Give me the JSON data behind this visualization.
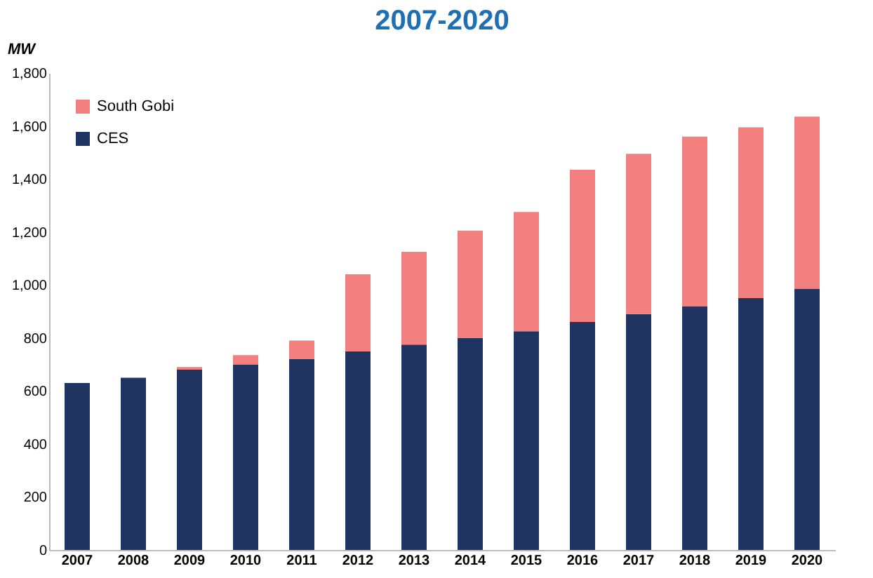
{
  "chart_data": {
    "type": "bar",
    "title": "2007-2020",
    "ylabel": "MW",
    "stacked": true,
    "legend": "top left",
    "grid": false,
    "categories": [
      "2007",
      "2008",
      "2009",
      "2010",
      "2011",
      "2012",
      "2013",
      "2014",
      "2015",
      "2016",
      "2017",
      "2018",
      "2019",
      "2020"
    ],
    "series": [
      {
        "name": "CES",
        "color": "#1f3461",
        "values": [
          630,
          650,
          680,
          700,
          720,
          750,
          775,
          800,
          825,
          860,
          890,
          920,
          950,
          985
        ]
      },
      {
        "name": "South Gobi",
        "color": "#f47f7f",
        "values": [
          0,
          0,
          10,
          35,
          70,
          290,
          350,
          405,
          450,
          575,
          605,
          640,
          645,
          650
        ]
      }
    ],
    "ylim": [
      0,
      1800
    ],
    "yticks": [
      0,
      200,
      400,
      600,
      800,
      {
        "value": 1000,
        "label": "1,000"
      },
      {
        "value": 1200,
        "label": "1,200"
      },
      {
        "value": 1400,
        "label": "1,400"
      },
      {
        "value": 1600,
        "label": "1,600"
      },
      {
        "value": 1800,
        "label": "1,800"
      }
    ]
  }
}
